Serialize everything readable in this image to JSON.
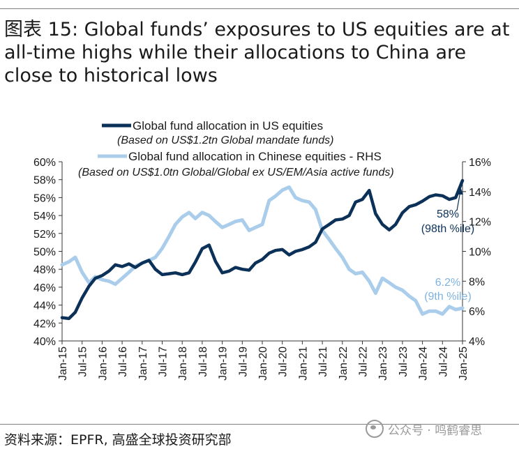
{
  "title": "图表 15: Global funds’ exposures to US equities are at all-time highs while their allocations to China are close to historical lows",
  "source": "资料来源：EPFR, 高盛全球投资研究部",
  "watermark": "公众号 · 鸣鹤睿思",
  "colors": {
    "us": "#0b3158",
    "china": "#a9cdea",
    "us_anno": "#0b3158",
    "china_anno": "#7fb3df"
  },
  "chart_data": {
    "type": "line",
    "title": "",
    "xlabel": "",
    "ylabel": "",
    "y_left_lim": [
      40,
      60
    ],
    "y_right_lim": [
      4,
      16
    ],
    "y_left_ticks": [
      "60%",
      "58%",
      "56%",
      "54%",
      "52%",
      "50%",
      "48%",
      "46%",
      "44%",
      "42%",
      "40%"
    ],
    "y_right_ticks": [
      "16%",
      "14%",
      "12%",
      "10%",
      "8%",
      "6%",
      "4%"
    ],
    "x_ticks": [
      "Jan-15",
      "Jul-15",
      "Jan-16",
      "Jul-16",
      "Jan-17",
      "Jul-17",
      "Jan-18",
      "Jul-18",
      "Jan-19",
      "Jul-19",
      "Jan-20",
      "Jul-20",
      "Jan-21",
      "Jul-21",
      "Jan-22",
      "Jul-22",
      "Jan-23",
      "Jul-23",
      "Jan-24",
      "Jul-24",
      "Jan-25"
    ],
    "legend": [
      {
        "label": "Global fund allocation in US equities",
        "sub": "(Based on US$1.2tn Global mandate funds)"
      },
      {
        "label": "Global fund allocation in Chinese equities - RHS",
        "sub": "(Based on US$1.0tn Global/Global ex US/EM/Asia active funds)"
      }
    ],
    "annotations": [
      {
        "series": "us",
        "line1": "58%",
        "line2": "(98th %ile)"
      },
      {
        "series": "china",
        "line1": "6.2%",
        "line2": "(9th %ile)"
      }
    ],
    "series": [
      {
        "name": "Global fund allocation in US equities",
        "axis": "left",
        "x": [
          2015.0,
          2015.17,
          2015.33,
          2015.5,
          2015.67,
          2015.83,
          2016.0,
          2016.17,
          2016.33,
          2016.5,
          2016.67,
          2016.83,
          2017.0,
          2017.17,
          2017.33,
          2017.5,
          2017.67,
          2017.83,
          2018.0,
          2018.17,
          2018.33,
          2018.5,
          2018.67,
          2018.83,
          2019.0,
          2019.17,
          2019.33,
          2019.5,
          2019.67,
          2019.83,
          2020.0,
          2020.17,
          2020.33,
          2020.5,
          2020.67,
          2020.83,
          2021.0,
          2021.17,
          2021.33,
          2021.5,
          2021.67,
          2021.83,
          2022.0,
          2022.17,
          2022.33,
          2022.5,
          2022.67,
          2022.83,
          2023.0,
          2023.17,
          2023.33,
          2023.5,
          2023.67,
          2023.83,
          2024.0,
          2024.17,
          2024.33,
          2024.5,
          2024.67,
          2024.83,
          2025.0
        ],
        "y": [
          42.6,
          42.5,
          43.2,
          44.8,
          46.1,
          47.0,
          47.3,
          47.8,
          48.5,
          48.3,
          48.6,
          48.2,
          48.7,
          49.0,
          48.0,
          47.4,
          47.5,
          47.6,
          47.4,
          47.6,
          48.8,
          50.3,
          50.7,
          48.9,
          47.6,
          47.8,
          48.2,
          48.0,
          47.9,
          48.7,
          49.1,
          49.8,
          50.1,
          50.2,
          49.6,
          50.0,
          50.2,
          50.5,
          51.0,
          52.5,
          53.0,
          53.5,
          53.6,
          54.0,
          55.5,
          55.8,
          56.8,
          54.2,
          53.0,
          52.4,
          53.0,
          54.3,
          55.0,
          55.2,
          55.6,
          56.1,
          56.3,
          56.2,
          55.8,
          56.0,
          57.9
        ]
      },
      {
        "name": "Global fund allocation in Chinese equities - RHS",
        "axis": "right",
        "x": [
          2015.0,
          2015.17,
          2015.33,
          2015.5,
          2015.67,
          2015.83,
          2016.0,
          2016.17,
          2016.33,
          2016.5,
          2016.67,
          2016.83,
          2017.0,
          2017.17,
          2017.33,
          2017.5,
          2017.67,
          2017.83,
          2018.0,
          2018.17,
          2018.33,
          2018.5,
          2018.67,
          2018.83,
          2019.0,
          2019.17,
          2019.33,
          2019.5,
          2019.67,
          2019.83,
          2020.0,
          2020.17,
          2020.33,
          2020.5,
          2020.67,
          2020.83,
          2021.0,
          2021.17,
          2021.33,
          2021.5,
          2021.67,
          2021.83,
          2022.0,
          2022.17,
          2022.33,
          2022.5,
          2022.67,
          2022.83,
          2023.0,
          2023.17,
          2023.33,
          2023.5,
          2023.67,
          2023.83,
          2024.0,
          2024.17,
          2024.33,
          2024.5,
          2024.67,
          2024.83,
          2025.0
        ],
        "y": [
          9.1,
          9.3,
          9.6,
          8.6,
          7.9,
          8.3,
          8.1,
          8.0,
          7.8,
          8.2,
          8.6,
          9.0,
          9.2,
          9.4,
          9.6,
          10.2,
          11.0,
          11.8,
          12.3,
          12.6,
          12.2,
          12.6,
          12.4,
          12.0,
          11.6,
          11.8,
          12.0,
          12.1,
          11.4,
          11.6,
          11.8,
          13.4,
          13.7,
          14.1,
          14.3,
          13.6,
          13.4,
          13.3,
          12.8,
          11.4,
          10.8,
          10.2,
          9.6,
          8.8,
          8.5,
          8.6,
          8.0,
          7.2,
          8.2,
          7.9,
          7.6,
          7.4,
          7.0,
          6.7,
          5.8,
          6.0,
          6.0,
          5.8,
          6.3,
          6.1,
          6.2
        ]
      }
    ]
  }
}
